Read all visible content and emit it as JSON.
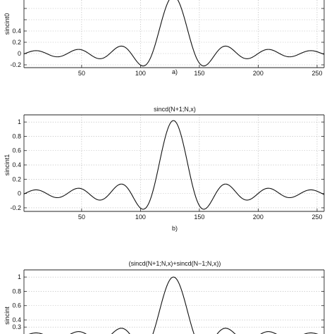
{
  "chart_data": [
    {
      "type": "line",
      "title": "",
      "ylabel": "sincint0",
      "xlabel": "",
      "caption": "a)",
      "xlim": [
        1,
        256
      ],
      "ylim": [
        -0.25,
        1.1
      ],
      "xticks": [
        50,
        100,
        150,
        200,
        250
      ],
      "yticks": [
        1,
        0.8,
        0.6,
        0.4,
        0.2,
        0,
        -0.2
      ],
      "ytick_labels": [
        "",
        "",
        "",
        "0.4",
        "0.2",
        "0",
        "-0.2"
      ],
      "xtick_labels": [
        "50",
        "100",
        "150",
        "200",
        "250"
      ],
      "grid": true,
      "series": [
        {
          "function": "sinc",
          "center": 128,
          "period": 18,
          "x_start": 1,
          "x_end": 256,
          "y_min": -0.22,
          "y_max": 1.02
        }
      ]
    },
    {
      "type": "line",
      "title": "sincd(N+1;N,x)",
      "ylabel": "sincint1",
      "xlabel": "",
      "caption": "b)",
      "xlim": [
        1,
        256
      ],
      "ylim": [
        -0.25,
        1.1
      ],
      "xticks": [
        50,
        100,
        150,
        200,
        250
      ],
      "yticks": [
        1,
        0.8,
        0.6,
        0.4,
        0.2,
        0,
        -0.2
      ],
      "ytick_labels": [
        "1",
        "0.8",
        "0.6",
        "0.4",
        "0.2",
        "0",
        "-0.2"
      ],
      "xtick_labels": [
        "50",
        "100",
        "150",
        "200",
        "250"
      ],
      "grid": true,
      "series": [
        {
          "function": "sinc",
          "center": 128,
          "period": 18,
          "x_start": 1,
          "x_end": 256,
          "y_min": -0.22,
          "y_max": 1.02
        }
      ]
    },
    {
      "type": "line",
      "title": "(sincd(N+1;N,x)+sincd(N−1;N,x))",
      "ylabel": "sincint",
      "xlabel": "",
      "caption": "",
      "xlim": [
        1,
        256
      ],
      "ylim": [
        -0.25,
        1.1
      ],
      "xticks": [],
      "yticks": [
        1,
        0.8,
        0.6,
        0.4,
        0.3
      ],
      "ytick_labels": [
        "1",
        "0.8",
        "0.6",
        "0.4",
        "0.3"
      ],
      "xtick_labels": [],
      "grid": true,
      "series": [
        {
          "function": "sinc",
          "center": 128,
          "period": 18,
          "x_start": 1,
          "x_end": 256,
          "y_min": 0.0,
          "y_max": 1.0
        }
      ]
    }
  ]
}
